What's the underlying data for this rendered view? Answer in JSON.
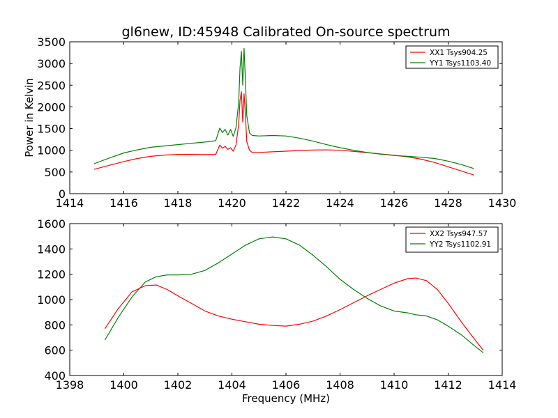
{
  "figure_title": "gl6new, ID:45948 Calibrated On-source spectrum",
  "chart_data": [
    {
      "type": "line",
      "title": "gl6new, ID:45948 Calibrated On-source spectrum",
      "xlabel": "",
      "ylabel": "Power in Kelvin",
      "xlim": [
        1414,
        1430
      ],
      "ylim": [
        0,
        3500
      ],
      "xticks": [
        1414,
        1416,
        1418,
        1420,
        1422,
        1424,
        1426,
        1428,
        1430
      ],
      "yticks": [
        0,
        500,
        1000,
        1500,
        2000,
        2500,
        3000,
        3500
      ],
      "grid": false,
      "legend_position": "top-right",
      "series": [
        {
          "name": "XX1 Tsys904.25",
          "color": "#ff0000",
          "x": [
            1414.9,
            1415.5,
            1416,
            1416.5,
            1417,
            1417.5,
            1418,
            1418.5,
            1419,
            1419.4,
            1419.55,
            1419.65,
            1419.75,
            1419.85,
            1419.95,
            1420.05,
            1420.15,
            1420.25,
            1420.3,
            1420.35,
            1420.4,
            1420.45,
            1420.5,
            1420.55,
            1420.65,
            1420.75,
            1421,
            1421.5,
            1422,
            1422.5,
            1423,
            1423.5,
            1424,
            1424.5,
            1425,
            1425.5,
            1426,
            1426.5,
            1427,
            1427.5,
            1428,
            1428.5,
            1428.95
          ],
          "y": [
            560,
            660,
            740,
            810,
            860,
            890,
            905,
            905,
            900,
            905,
            1120,
            1050,
            1090,
            1020,
            1060,
            980,
            1120,
            1600,
            2150,
            2350,
            1650,
            2300,
            1800,
            1200,
            1000,
            950,
            950,
            965,
            980,
            995,
            1005,
            1010,
            1000,
            975,
            945,
            915,
            885,
            850,
            795,
            720,
            620,
            520,
            430
          ]
        },
        {
          "name": "YY1 Tsys1103.40",
          "color": "#008000",
          "x": [
            1414.9,
            1415.5,
            1416,
            1416.5,
            1417,
            1417.5,
            1418,
            1418.5,
            1419,
            1419.4,
            1419.55,
            1419.65,
            1419.75,
            1419.85,
            1419.95,
            1420.05,
            1420.15,
            1420.25,
            1420.3,
            1420.35,
            1420.4,
            1420.45,
            1420.5,
            1420.55,
            1420.65,
            1420.75,
            1421,
            1421.5,
            1422,
            1422.5,
            1423,
            1423.5,
            1424,
            1424.5,
            1425,
            1425.5,
            1426,
            1426.5,
            1427,
            1427.5,
            1428,
            1428.5,
            1428.95
          ],
          "y": [
            690,
            830,
            940,
            1010,
            1070,
            1100,
            1130,
            1160,
            1190,
            1220,
            1510,
            1410,
            1480,
            1350,
            1480,
            1320,
            1520,
            2100,
            2900,
            3280,
            2500,
            3350,
            2600,
            1800,
            1400,
            1340,
            1330,
            1340,
            1330,
            1280,
            1210,
            1130,
            1060,
            1000,
            950,
            910,
            880,
            860,
            840,
            810,
            750,
            670,
            580
          ]
        }
      ]
    },
    {
      "type": "line",
      "title": "",
      "xlabel": "Frequency (MHz)",
      "ylabel": "",
      "xlim": [
        1398,
        1414
      ],
      "ylim": [
        400,
        1600
      ],
      "xticks": [
        1398,
        1400,
        1402,
        1404,
        1406,
        1408,
        1410,
        1412,
        1414
      ],
      "yticks": [
        400,
        600,
        800,
        1000,
        1200,
        1400,
        1600
      ],
      "grid": false,
      "legend_position": "top-right",
      "series": [
        {
          "name": "XX2 Tsys947.57",
          "color": "#ff0000",
          "x": [
            1399.3,
            1399.8,
            1400.3,
            1400.8,
            1401.2,
            1401.6,
            1402,
            1402.5,
            1403,
            1403.5,
            1404,
            1404.5,
            1405,
            1405.5,
            1406,
            1406.5,
            1407,
            1407.5,
            1408,
            1408.5,
            1409,
            1409.5,
            1410,
            1410.5,
            1410.8,
            1411.2,
            1411.6,
            1412,
            1412.5,
            1413,
            1413.3
          ],
          "y": [
            770,
            930,
            1060,
            1110,
            1115,
            1080,
            1030,
            970,
            910,
            870,
            845,
            825,
            805,
            795,
            790,
            805,
            830,
            870,
            920,
            975,
            1030,
            1080,
            1130,
            1165,
            1170,
            1150,
            1080,
            970,
            820,
            680,
            600
          ]
        },
        {
          "name": "YY2 Tsys1102.91",
          "color": "#008000",
          "x": [
            1399.3,
            1399.8,
            1400.3,
            1400.8,
            1401.2,
            1401.6,
            1402,
            1402.5,
            1403,
            1403.5,
            1404,
            1404.5,
            1405,
            1405.5,
            1406,
            1406.5,
            1407,
            1407.5,
            1408,
            1408.5,
            1409,
            1409.5,
            1410,
            1410.5,
            1410.8,
            1411.2,
            1411.6,
            1412,
            1412.5,
            1413,
            1413.3
          ],
          "y": [
            680,
            860,
            1020,
            1140,
            1180,
            1195,
            1195,
            1200,
            1230,
            1290,
            1360,
            1430,
            1480,
            1495,
            1480,
            1430,
            1350,
            1260,
            1160,
            1080,
            1010,
            950,
            910,
            895,
            880,
            870,
            840,
            790,
            720,
            630,
            580
          ]
        }
      ]
    }
  ]
}
